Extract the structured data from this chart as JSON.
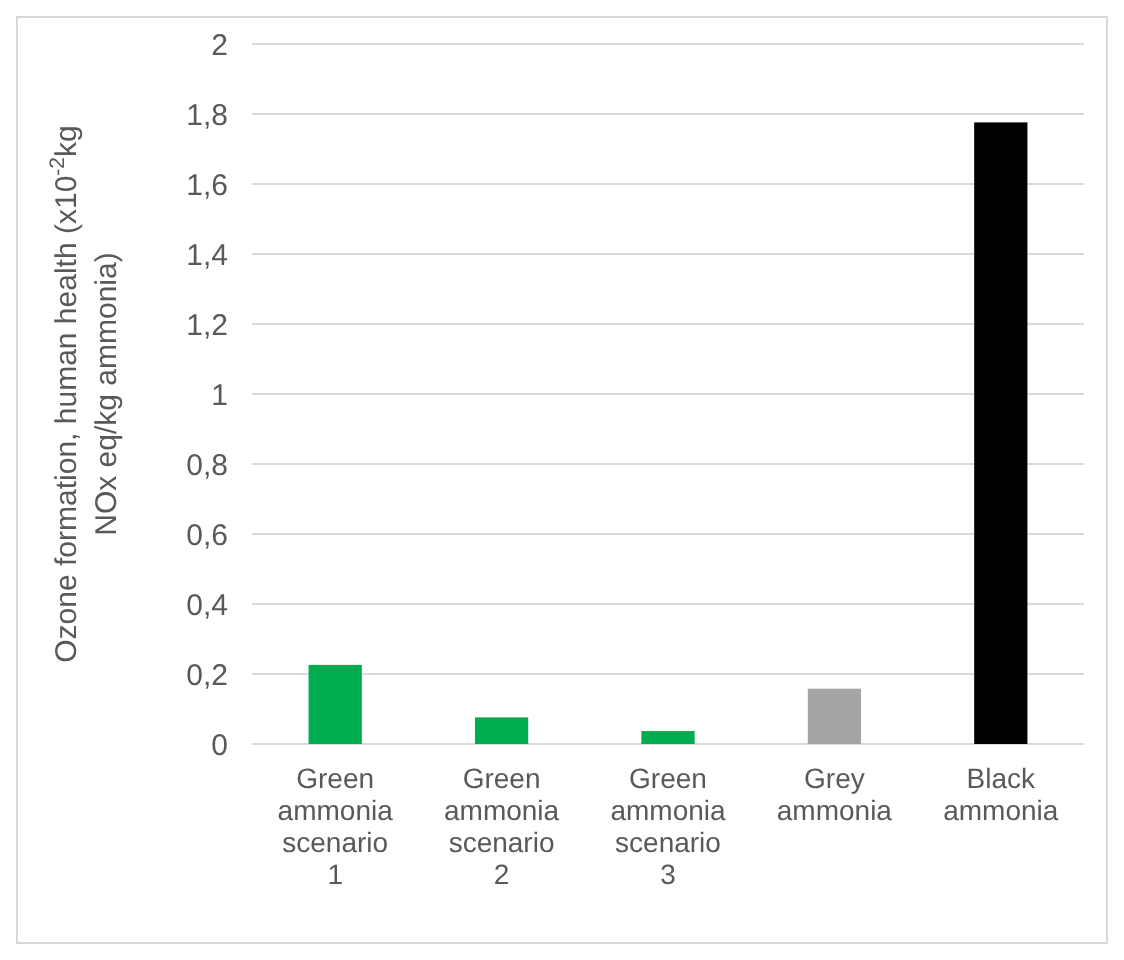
{
  "chart_data": {
    "type": "bar",
    "ylabel": "Ozone formation, human health (x10$^{-2}$kg NOx eq/kg ammonia)",
    "categories": [
      "Green ammonia scenario 1",
      "Green ammonia scenario 2",
      "Green ammonia scenario 3",
      "Grey ammonia",
      "Black ammonia"
    ],
    "values": [
      0.226,
      0.076,
      0.037,
      0.158,
      1.776
    ],
    "colors": [
      "#00ac4e",
      "#00ac4e",
      "#00ac4e",
      "#a5a5a5",
      "#000000"
    ],
    "ylim": [
      0,
      2
    ],
    "yticks": [
      {
        "value": 0,
        "label": "0"
      },
      {
        "value": 0.2,
        "label": "0,2"
      },
      {
        "value": 0.4,
        "label": "0,4"
      },
      {
        "value": 0.6,
        "label": "0,6"
      },
      {
        "value": 0.8,
        "label": "0,8"
      },
      {
        "value": 1,
        "label": "1"
      },
      {
        "value": 1.2,
        "label": "1,2"
      },
      {
        "value": 1.4,
        "label": "1,4"
      },
      {
        "value": 1.6,
        "label": "1,6"
      },
      {
        "value": 1.8,
        "label": "1,8"
      },
      {
        "value": 2,
        "label": "2"
      }
    ],
    "grid": "y"
  }
}
